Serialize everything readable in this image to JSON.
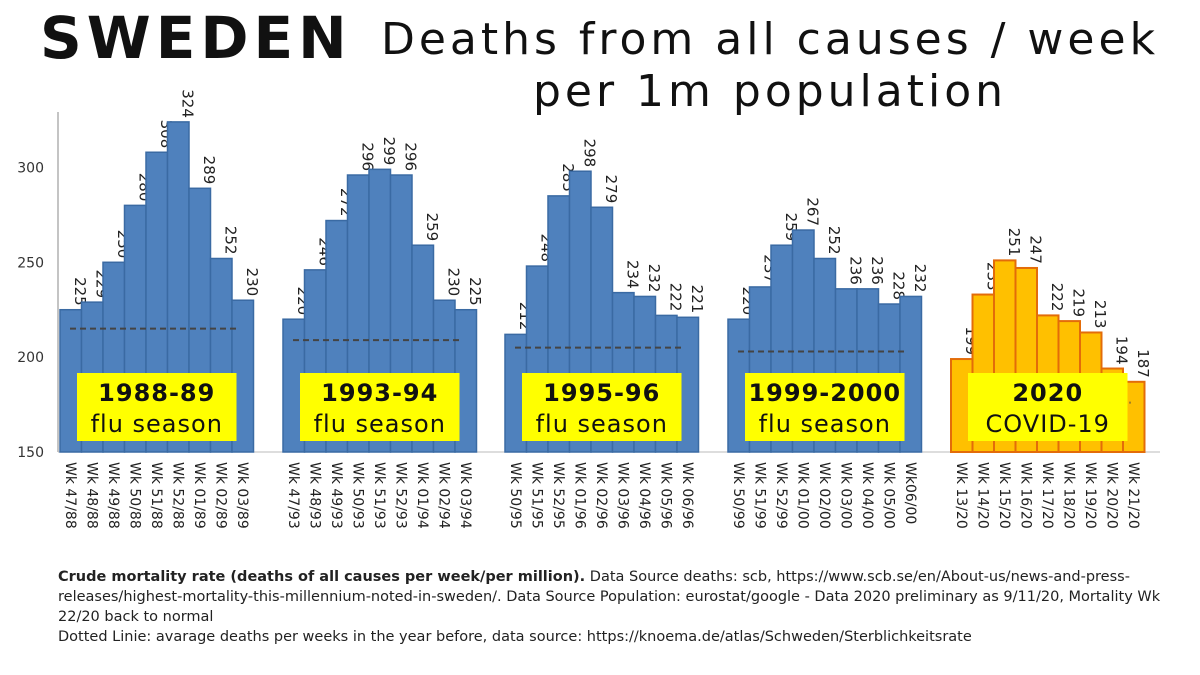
{
  "header": {
    "country": "SWEDEN",
    "title_line1": "Deaths from all causes / week",
    "title_line2": "per 1m population"
  },
  "colors": {
    "flu_bar": "#4f81bd",
    "flu_bar_edge": "#3a6aa3",
    "covid_bar": "#ffc000",
    "covid_bar_edge": "#e36c09",
    "label_box": "#ffff00",
    "average_line": "#444444"
  },
  "chart_data": {
    "type": "bar",
    "ylim": [
      150,
      325
    ],
    "yticks": [
      150,
      200,
      250,
      300
    ],
    "grid": false,
    "average_line_style": "dashed",
    "groups": [
      {
        "label_line1": "1988-89",
        "label_line2": "flu season",
        "style": "flu",
        "average": 215,
        "categories": [
          "Wk 47/88",
          "Wk 48/88",
          "Wk 49/88",
          "Wk 50/88",
          "Wk 51/88",
          "Wk 52/88",
          "Wk 01/89",
          "Wk 02/89",
          "Wk 03/89"
        ],
        "values": [
          225,
          229,
          250,
          280,
          308,
          324,
          289,
          252,
          230
        ]
      },
      {
        "label_line1": "1993-94",
        "label_line2": "flu season",
        "style": "flu",
        "average": 209,
        "categories": [
          "Wk 47/93",
          "Wk 48/93",
          "Wk 49/93",
          "Wk 50/93",
          "Wk 51/93",
          "Wk 52/93",
          "Wk 01/94",
          "Wk 02/94",
          "Wk 03/94"
        ],
        "values": [
          220,
          246,
          272,
          296,
          299,
          296,
          259,
          230,
          225
        ]
      },
      {
        "label_line1": "1995-96",
        "label_line2": "flu season",
        "style": "flu",
        "average": 205,
        "categories": [
          "Wk 50/95",
          "Wk 51/95",
          "Wk 52/95",
          "Wk 01/96",
          "Wk 02/96",
          "Wk 03/96",
          "Wk 04/96",
          "Wk 05/96",
          "Wk 06/96"
        ],
        "values": [
          212,
          248,
          285,
          298,
          279,
          234,
          232,
          222,
          221
        ]
      },
      {
        "label_line1": "1999-2000",
        "label_line2": "flu season",
        "style": "flu",
        "average": 203,
        "categories": [
          "Wk 50/99",
          "Wk 51/99",
          "Wk 52/99",
          "Wk 01/00",
          "Wk 02/00",
          "Wk 03/00",
          "Wk 04/00",
          "Wk 05/00",
          "Wk06/00"
        ],
        "values": [
          220,
          237,
          259,
          267,
          252,
          236,
          236,
          228,
          232
        ]
      },
      {
        "label_line1": "2020",
        "label_line2": "COVID-19",
        "style": "covid",
        "average": 176,
        "categories": [
          "Wk 13/20",
          "Wk 14/20",
          "Wk 15/20",
          "Wk 16/20",
          "Wk 17/20",
          "Wk 18/20",
          "Wk 19/20",
          "Wk 20/20",
          "Wk 21/20"
        ],
        "values": [
          199,
          233,
          251,
          247,
          222,
          219,
          213,
          194,
          187
        ]
      }
    ]
  },
  "notes": {
    "line1_bold": "Crude mortality rate (deaths of all causes per week/per million).",
    "line1_rest": " Data Source deaths: scb, https://www.scb.se/en/About-us/news-and-press-releases/highest-mortality-this-millennium-noted-in-sweden/. Data Source Population: eurostat/google -  Data 2020 preliminary as 9/11/20, Mortality Wk 22/20 back to normal",
    "line2": "Dotted Linie: avarage deaths per weeks in the year before, data source: https://knoema.de/atlas/Schweden/Sterblichkeitsrate"
  }
}
